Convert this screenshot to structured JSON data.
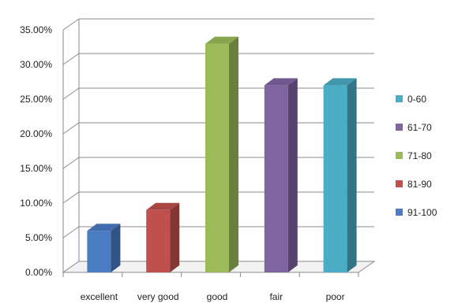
{
  "chart_data": {
    "type": "bar",
    "style": "3d-column",
    "categories": [
      "excellent",
      "very good",
      "good",
      "fair",
      "poor"
    ],
    "series": [
      {
        "name": "91-100",
        "category": "excellent",
        "value": 6.0,
        "color": "#4a7cc4"
      },
      {
        "name": "81-90",
        "category": "very good",
        "value": 9.0,
        "color": "#c0504d"
      },
      {
        "name": "71-80",
        "category": "good",
        "value": 33.0,
        "color": "#9bbb59"
      },
      {
        "name": "61-70",
        "category": "fair",
        "value": 27.0,
        "color": "#8064a2"
      },
      {
        "name": "0-60",
        "category": "poor",
        "value": 27.0,
        "color": "#4bacc6"
      }
    ],
    "title": "",
    "xlabel": "",
    "ylabel": "",
    "ylim": [
      0,
      35
    ],
    "yticks": [
      "0.00%",
      "5.00%",
      "10.00%",
      "15.00%",
      "20.00%",
      "25.00%",
      "30.00%",
      "35.00%"
    ],
    "grid": true,
    "legend_position": "right",
    "legend": [
      "0-60",
      "61-70",
      "71-80",
      "81-90",
      "91-100"
    ]
  }
}
